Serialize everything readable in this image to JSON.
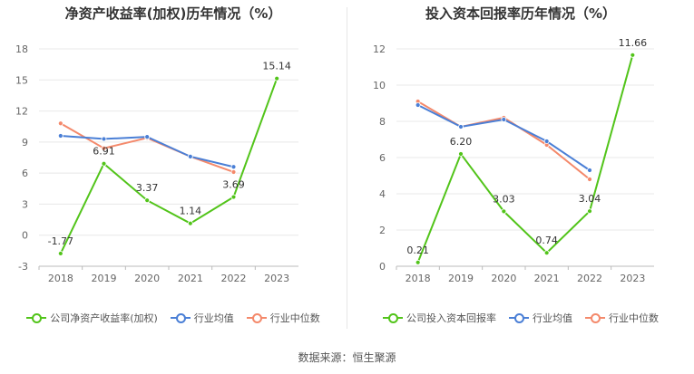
{
  "chart_data": [
    {
      "type": "line",
      "title": "净资产收益率(加权)历年情况（%）",
      "categories": [
        "2018",
        "2019",
        "2020",
        "2021",
        "2022",
        "2023"
      ],
      "ylim": [
        -3,
        18
      ],
      "yticks": [
        -3,
        0,
        3,
        6,
        9,
        12,
        15,
        18
      ],
      "grid": true,
      "legend_position": "bottom",
      "series": [
        {
          "name": "公司净资产收益率(加权)",
          "color": "#52c41a",
          "values": [
            -1.77,
            6.91,
            3.37,
            1.14,
            3.69,
            15.14
          ],
          "labels": [
            "-1.77",
            "6.91",
            "3.37",
            "1.14",
            "3.69",
            "15.14"
          ]
        },
        {
          "name": "行业均值",
          "color": "#4a7fd6",
          "values": [
            9.6,
            9.3,
            9.5,
            7.6,
            6.6,
            null
          ]
        },
        {
          "name": "行业中位数",
          "color": "#f4896b",
          "values": [
            10.8,
            8.4,
            9.4,
            7.6,
            6.1,
            null
          ]
        }
      ]
    },
    {
      "type": "line",
      "title": "投入资本回报率历年情况（%）",
      "categories": [
        "2018",
        "2019",
        "2020",
        "2021",
        "2022",
        "2023"
      ],
      "ylim": [
        0,
        12
      ],
      "yticks": [
        0,
        2,
        4,
        6,
        8,
        10,
        12
      ],
      "grid": true,
      "legend_position": "bottom",
      "series": [
        {
          "name": "公司投入资本回报率",
          "color": "#52c41a",
          "values": [
            0.21,
            6.2,
            3.03,
            0.74,
            3.04,
            11.66
          ],
          "labels": [
            "0.21",
            "6.20",
            "3.03",
            "0.74",
            "3.04",
            "11.66"
          ]
        },
        {
          "name": "行业均值",
          "color": "#4a7fd6",
          "values": [
            8.9,
            7.7,
            8.1,
            6.9,
            5.3,
            null
          ]
        },
        {
          "name": "行业中位数",
          "color": "#f4896b",
          "values": [
            9.1,
            7.7,
            8.2,
            6.7,
            4.8,
            null
          ]
        }
      ]
    }
  ],
  "footer": {
    "source": "数据来源：恒生聚源"
  }
}
